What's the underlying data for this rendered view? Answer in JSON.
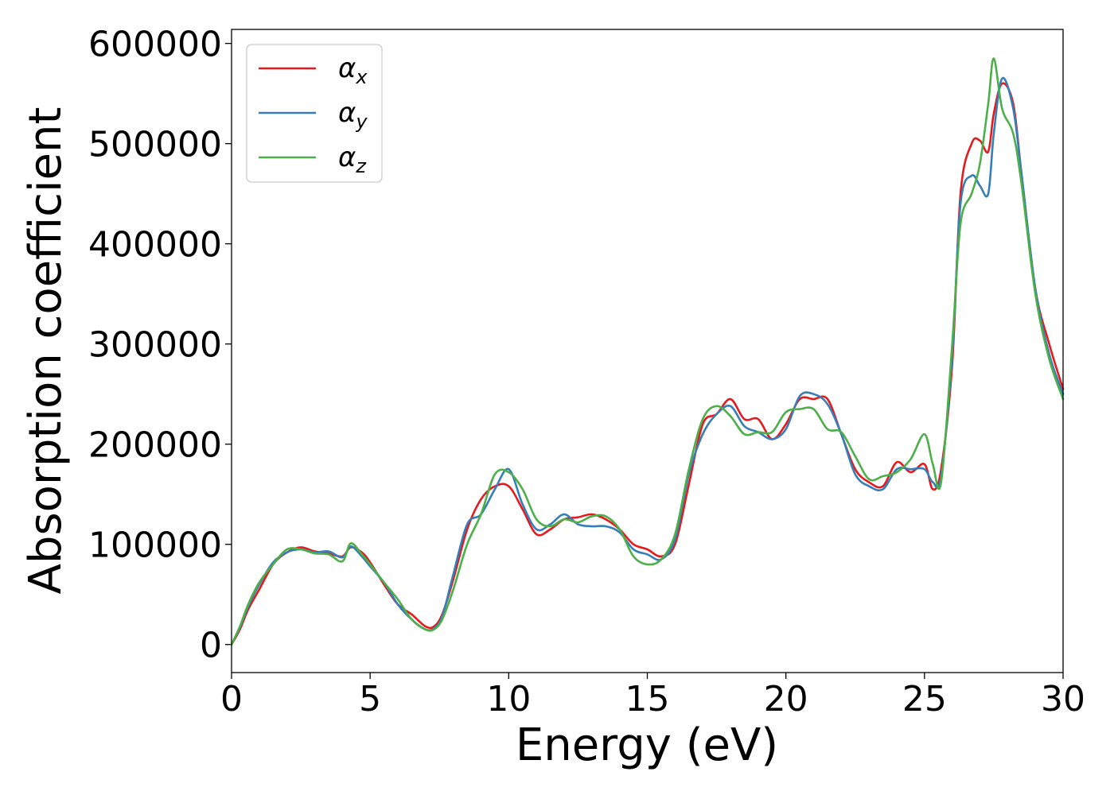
{
  "chart_data": {
    "type": "line",
    "title": "",
    "xlabel": "Energy (eV)",
    "ylabel": "Absorption coefficient",
    "xlim": [
      0,
      30
    ],
    "ylim": [
      -28000,
      614000
    ],
    "xticks": [
      0,
      5,
      10,
      15,
      20,
      25,
      30
    ],
    "xtick_labels": [
      "0",
      "5",
      "10",
      "15",
      "20",
      "25",
      "30"
    ],
    "yticks": [
      0,
      100000,
      200000,
      300000,
      400000,
      500000,
      600000
    ],
    "ytick_labels": [
      "0",
      "100000",
      "200000",
      "300000",
      "400000",
      "500000",
      "600000"
    ],
    "grid": false,
    "legend_position": "top-left",
    "colors": {
      "alpha_x": "#e41a1c",
      "alpha_y": "#377eb8",
      "alpha_z": "#4daf4a"
    },
    "series": [
      {
        "name": "α",
        "subscript": "x",
        "color": "#e41a1c",
        "x": [
          0,
          0.3,
          0.6,
          1.0,
          1.5,
          2.0,
          2.5,
          3.0,
          3.5,
          4.0,
          4.3,
          4.7,
          5.0,
          5.5,
          6.0,
          6.5,
          7.0,
          7.3,
          7.6,
          8.0,
          8.5,
          9.0,
          9.5,
          10.0,
          10.5,
          11.0,
          11.5,
          12.0,
          12.5,
          13.0,
          13.5,
          14.0,
          14.5,
          15.0,
          15.5,
          16.0,
          16.5,
          17.0,
          17.5,
          18.0,
          18.5,
          19.0,
          19.5,
          20.0,
          20.5,
          21.0,
          21.5,
          22.0,
          22.5,
          23.0,
          23.5,
          24.0,
          24.5,
          25.0,
          25.3,
          25.6,
          26.0,
          26.3,
          26.7,
          27.0,
          27.3,
          27.5,
          27.8,
          28.2,
          28.5,
          29.0,
          29.5,
          30.0
        ],
        "y": [
          0,
          15000,
          35000,
          55000,
          80000,
          92000,
          97000,
          93000,
          91000,
          88000,
          97000,
          92000,
          82000,
          60000,
          40000,
          30000,
          18000,
          18000,
          30000,
          65000,
          115000,
          145000,
          158000,
          158000,
          135000,
          110000,
          115000,
          125000,
          127000,
          130000,
          125000,
          115000,
          100000,
          95000,
          88000,
          100000,
          160000,
          220000,
          230000,
          245000,
          225000,
          225000,
          205000,
          220000,
          245000,
          245000,
          245000,
          210000,
          175000,
          162000,
          158000,
          182000,
          172000,
          180000,
          155000,
          175000,
          280000,
          450000,
          500000,
          503000,
          492000,
          530000,
          560000,
          540000,
          470000,
          355000,
          300000,
          255000
        ]
      },
      {
        "name": "α",
        "subscript": "y",
        "color": "#377eb8",
        "x": [
          0,
          0.3,
          0.6,
          1.0,
          1.5,
          2.0,
          2.5,
          3.0,
          3.5,
          4.0,
          4.3,
          4.7,
          5.0,
          5.5,
          6.0,
          6.5,
          7.0,
          7.3,
          7.6,
          8.0,
          8.5,
          9.0,
          9.5,
          10.0,
          10.5,
          11.0,
          11.5,
          12.0,
          12.5,
          13.0,
          13.5,
          14.0,
          14.5,
          15.0,
          15.5,
          16.0,
          16.5,
          17.0,
          17.5,
          18.0,
          18.5,
          19.0,
          19.5,
          20.0,
          20.5,
          21.0,
          21.5,
          22.0,
          22.5,
          23.0,
          23.5,
          24.0,
          24.5,
          25.0,
          25.3,
          25.6,
          26.0,
          26.3,
          26.7,
          27.0,
          27.3,
          27.5,
          27.8,
          28.2,
          28.5,
          29.0,
          29.5,
          30.0
        ],
        "y": [
          0,
          17000,
          38000,
          60000,
          82000,
          92000,
          95000,
          92000,
          93000,
          87000,
          98000,
          88000,
          78000,
          62000,
          40000,
          25000,
          15000,
          16000,
          28000,
          70000,
          120000,
          130000,
          155000,
          175000,
          140000,
          115000,
          120000,
          130000,
          120000,
          118000,
          118000,
          112000,
          95000,
          90000,
          85000,
          105000,
          170000,
          210000,
          230000,
          238000,
          218000,
          212000,
          205000,
          215000,
          248000,
          250000,
          240000,
          210000,
          170000,
          158000,
          155000,
          175000,
          175000,
          175000,
          162000,
          168000,
          290000,
          440000,
          468000,
          458000,
          450000,
          510000,
          565000,
          535000,
          470000,
          355000,
          290000,
          250000
        ]
      },
      {
        "name": "α",
        "subscript": "z",
        "color": "#4daf4a",
        "x": [
          0,
          0.3,
          0.6,
          1.0,
          1.5,
          2.0,
          2.5,
          3.0,
          3.5,
          4.0,
          4.3,
          4.7,
          5.0,
          5.5,
          6.0,
          6.5,
          7.0,
          7.3,
          7.6,
          8.0,
          8.5,
          9.0,
          9.5,
          10.0,
          10.5,
          11.0,
          11.5,
          12.0,
          12.5,
          13.0,
          13.5,
          14.0,
          14.5,
          15.0,
          15.5,
          16.0,
          16.5,
          17.0,
          17.5,
          18.0,
          18.5,
          19.0,
          19.5,
          20.0,
          20.5,
          21.0,
          21.5,
          22.0,
          22.5,
          23.0,
          23.5,
          24.0,
          24.5,
          25.0,
          25.3,
          25.6,
          26.0,
          26.3,
          26.7,
          27.0,
          27.3,
          27.5,
          27.8,
          28.2,
          28.5,
          29.0,
          29.5,
          30.0
        ],
        "y": [
          0,
          18000,
          40000,
          62000,
          80000,
          95000,
          95000,
          91000,
          90000,
          83000,
          101000,
          90000,
          80000,
          62000,
          45000,
          25000,
          15000,
          15000,
          25000,
          55000,
          100000,
          130000,
          170000,
          172000,
          155000,
          125000,
          118000,
          125000,
          122000,
          128000,
          128000,
          115000,
          88000,
          80000,
          85000,
          110000,
          175000,
          225000,
          238000,
          228000,
          210000,
          212000,
          212000,
          232000,
          235000,
          235000,
          215000,
          212000,
          188000,
          165000,
          168000,
          172000,
          185000,
          210000,
          180000,
          162000,
          300000,
          420000,
          450000,
          480000,
          540000,
          585000,
          535000,
          510000,
          460000,
          350000,
          285000,
          245000
        ]
      }
    ]
  }
}
